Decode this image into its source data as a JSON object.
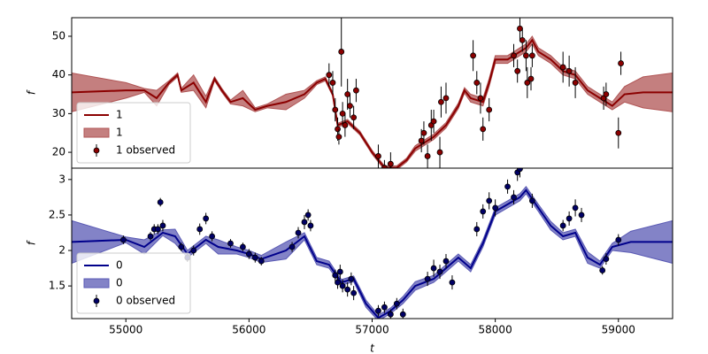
{
  "chart_data": [
    {
      "type": "line",
      "ylabel": "f",
      "xlim": [
        54560,
        59440
      ],
      "ylim": [
        15.9,
        54.8
      ],
      "yticks": [
        20,
        30,
        40,
        50
      ],
      "legend": "lower left",
      "x": [
        54560,
        55000,
        55150,
        55250,
        55350,
        55420,
        55450,
        55550,
        55650,
        55720,
        55780,
        55850,
        55950,
        56050,
        56150,
        56300,
        56450,
        56550,
        56620,
        56680,
        56720,
        56800,
        56900,
        57000,
        57100,
        57200,
        57280,
        57350,
        57500,
        57600,
        57700,
        57750,
        57800,
        57900,
        57950,
        58000,
        58100,
        58200,
        58250,
        58300,
        58350,
        58450,
        58550,
        58650,
        58750,
        58850,
        58950,
        59050,
        59200,
        59440
      ],
      "series": [
        {
          "name": "1",
          "kind": "line",
          "color": "#8b0000",
          "values": [
            35.5,
            36,
            36,
            34,
            38,
            40,
            36,
            38,
            33,
            39,
            36,
            33,
            34,
            31,
            32,
            33,
            35,
            38,
            39,
            35,
            27,
            28,
            25,
            20,
            16,
            16,
            18,
            21,
            24,
            27,
            32,
            36,
            34,
            33,
            38,
            44,
            44,
            46,
            47,
            49,
            46,
            44,
            41,
            40,
            36,
            34,
            32,
            35,
            35.5,
            35.5
          ]
        },
        {
          "name": "1",
          "kind": "band",
          "color": "#b05454",
          "lower": [
            30.5,
            34,
            35.5,
            32,
            37.5,
            39.5,
            35.5,
            36,
            31.5,
            38.5,
            35.5,
            32.5,
            32,
            30.5,
            31.5,
            31,
            34,
            37.5,
            38.5,
            34.5,
            26.5,
            27.5,
            24.5,
            19.5,
            15.5,
            15.5,
            17.5,
            20.3,
            23.3,
            26.3,
            31.3,
            35.3,
            33,
            32,
            37,
            43,
            43,
            45,
            46,
            48,
            45,
            43,
            40,
            39,
            35,
            33,
            31,
            33,
            31.5,
            30.5
          ],
          "upper": [
            40.5,
            38,
            36.5,
            36,
            38.5,
            40.5,
            36.5,
            40,
            34.5,
            39.5,
            36.5,
            33.5,
            36,
            31.5,
            32.5,
            35,
            36,
            38.5,
            39.5,
            35.5,
            27.5,
            28.5,
            25.5,
            20.5,
            16.5,
            16.5,
            18.5,
            21.7,
            24.7,
            27.7,
            32.7,
            36.7,
            35,
            34,
            39,
            45,
            45,
            47,
            48,
            50,
            47,
            45,
            42,
            41,
            37,
            35,
            33,
            37,
            39.5,
            40.5
          ]
        },
        {
          "name": "1 observed",
          "kind": "errorbar",
          "color": "#8b0000",
          "x": [
            56650,
            56680,
            56700,
            56720,
            56730,
            56750,
            56760,
            56780,
            56800,
            56820,
            56850,
            56870,
            57050,
            57100,
            57150,
            57400,
            57420,
            57450,
            57480,
            57500,
            57550,
            57560,
            57600,
            57820,
            57850,
            57880,
            57900,
            57950,
            58150,
            58180,
            58200,
            58220,
            58250,
            58260,
            58290,
            58300,
            58550,
            58600,
            58650,
            58880,
            58900,
            59000,
            59020
          ],
          "values": [
            40,
            38,
            31,
            26,
            24,
            46,
            30,
            27,
            35,
            32,
            29,
            36,
            19,
            16,
            17,
            23,
            25,
            19,
            27,
            28,
            20,
            33,
            34,
            45,
            38,
            34,
            26,
            31,
            45,
            41,
            52,
            49,
            45,
            38,
            39,
            45,
            42,
            41,
            38,
            34,
            35,
            25,
            43
          ],
          "errors": [
            3,
            3,
            3,
            3,
            2,
            9,
            3,
            3,
            4,
            3,
            3,
            3,
            3,
            2,
            3,
            3,
            3,
            3,
            4,
            3,
            4,
            4,
            4,
            4,
            3,
            4,
            3,
            3,
            3,
            3,
            3,
            3,
            4,
            4,
            3,
            3,
            4,
            4,
            4,
            3,
            3,
            4,
            3
          ]
        }
      ]
    },
    {
      "type": "line",
      "ylabel": "f",
      "xlabel": "t",
      "xlim": [
        54560,
        59440
      ],
      "ylim": [
        1.04,
        3.16
      ],
      "yticks": [
        1.5,
        2.0,
        2.5,
        3.0
      ],
      "xticks": [
        55000,
        56000,
        57000,
        58000,
        59000
      ],
      "legend": "lower left",
      "x": [
        54560,
        55000,
        55150,
        55300,
        55400,
        55500,
        55650,
        55750,
        55900,
        56000,
        56100,
        56300,
        56450,
        56550,
        56650,
        56750,
        56850,
        56950,
        57050,
        57150,
        57250,
        57350,
        57500,
        57600,
        57700,
        57800,
        57900,
        58000,
        58100,
        58200,
        58250,
        58350,
        58450,
        58550,
        58650,
        58750,
        58850,
        58950,
        59100,
        59440
      ],
      "series": [
        {
          "name": "0",
          "kind": "line",
          "color": "#00008b",
          "values": [
            2.12,
            2.15,
            2.05,
            2.25,
            2.2,
            1.95,
            2.15,
            2.05,
            2.0,
            1.95,
            1.88,
            2.0,
            2.2,
            1.85,
            1.8,
            1.55,
            1.6,
            1.25,
            1.05,
            1.15,
            1.3,
            1.5,
            1.6,
            1.75,
            1.9,
            1.75,
            2.1,
            2.55,
            2.65,
            2.75,
            2.85,
            2.6,
            2.35,
            2.2,
            2.25,
            1.9,
            1.8,
            2.05,
            2.12,
            2.12
          ]
        },
        {
          "name": "0",
          "kind": "band",
          "color": "#5a5ab4",
          "lower": [
            1.82,
            2.11,
            1.95,
            2.21,
            2.1,
            1.9,
            2.1,
            1.95,
            1.95,
            1.9,
            1.83,
            1.88,
            2.15,
            1.8,
            1.75,
            1.51,
            1.56,
            1.2,
            1.01,
            1.11,
            1.25,
            1.44,
            1.55,
            1.7,
            1.85,
            1.7,
            2.05,
            2.5,
            2.6,
            2.7,
            2.8,
            2.55,
            2.29,
            2.15,
            2.2,
            1.82,
            1.75,
            2.0,
            1.97,
            1.82
          ],
          "upper": [
            2.42,
            2.19,
            2.15,
            2.29,
            2.3,
            2.0,
            2.2,
            2.15,
            2.05,
            2.0,
            1.93,
            2.12,
            2.25,
            1.9,
            1.85,
            1.59,
            1.64,
            1.3,
            1.09,
            1.19,
            1.35,
            1.56,
            1.65,
            1.8,
            1.95,
            1.8,
            2.15,
            2.6,
            2.7,
            2.8,
            2.9,
            2.65,
            2.41,
            2.25,
            2.3,
            1.98,
            1.85,
            2.1,
            2.27,
            2.42
          ]
        },
        {
          "name": "0 observed",
          "kind": "errorbar",
          "color": "#000066",
          "x": [
            54980,
            55200,
            55230,
            55260,
            55280,
            55300,
            55450,
            55500,
            55550,
            55600,
            55650,
            55700,
            55850,
            55950,
            56000,
            56050,
            56100,
            56350,
            56400,
            56450,
            56480,
            56500,
            56700,
            56720,
            56740,
            56760,
            56800,
            56830,
            56850,
            57050,
            57100,
            57150,
            57200,
            57250,
            57450,
            57500,
            57550,
            57600,
            57650,
            57850,
            57900,
            57950,
            58000,
            58100,
            58150,
            58180,
            58200,
            58300,
            58550,
            58600,
            58650,
            58700,
            58870,
            58900,
            59000
          ],
          "values": [
            2.15,
            2.2,
            2.3,
            2.3,
            2.68,
            2.35,
            2.05,
            1.9,
            2.0,
            2.3,
            2.45,
            2.2,
            2.1,
            2.05,
            1.95,
            1.9,
            1.85,
            2.05,
            2.25,
            2.4,
            2.5,
            2.35,
            1.65,
            1.55,
            1.7,
            1.5,
            1.45,
            1.6,
            1.4,
            1.15,
            1.2,
            1.1,
            1.25,
            1.1,
            1.6,
            1.75,
            1.7,
            1.85,
            1.55,
            2.3,
            2.55,
            2.7,
            2.6,
            2.9,
            2.75,
            3.1,
            3.15,
            2.7,
            2.35,
            2.45,
            2.6,
            2.5,
            1.72,
            1.88,
            2.15
          ],
          "errors": [
            0.06,
            0.06,
            0.07,
            0.07,
            0.06,
            0.08,
            0.06,
            0.06,
            0.07,
            0.08,
            0.08,
            0.07,
            0.06,
            0.06,
            0.07,
            0.07,
            0.06,
            0.07,
            0.08,
            0.1,
            0.08,
            0.08,
            0.08,
            0.09,
            0.1,
            0.09,
            0.1,
            0.09,
            0.1,
            0.08,
            0.08,
            0.07,
            0.08,
            0.08,
            0.1,
            0.12,
            0.1,
            0.1,
            0.1,
            0.1,
            0.1,
            0.12,
            0.12,
            0.1,
            0.1,
            0.12,
            0.12,
            0.1,
            0.08,
            0.1,
            0.12,
            0.1,
            0.06,
            0.08,
            0.08
          ]
        }
      ]
    }
  ]
}
